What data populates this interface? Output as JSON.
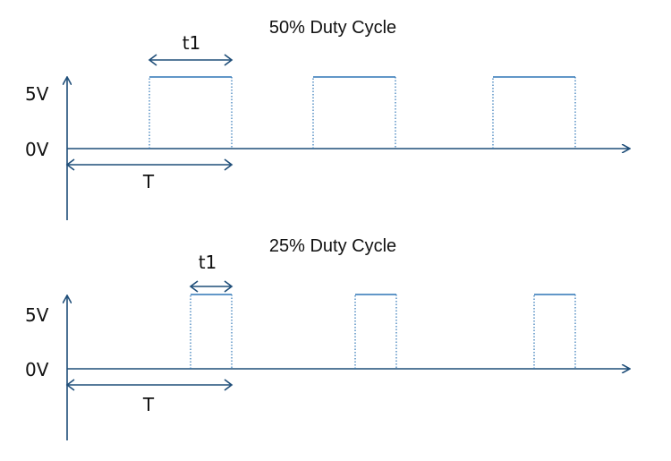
{
  "top_panel": {
    "title": "50% Duty Cycle",
    "high_label": "5V",
    "low_label": "0V",
    "pulse_width_label": "t1",
    "period_label": "T",
    "duty_cycle_percent": 50
  },
  "bottom_panel": {
    "title": "25% Duty Cycle",
    "high_label": "5V",
    "low_label": "0V",
    "pulse_width_label": "t1",
    "period_label": "T",
    "duty_cycle_percent": 25
  },
  "colors": {
    "axis": "#1f4e79",
    "pulse": "#2e75b6",
    "text": "#111111"
  }
}
